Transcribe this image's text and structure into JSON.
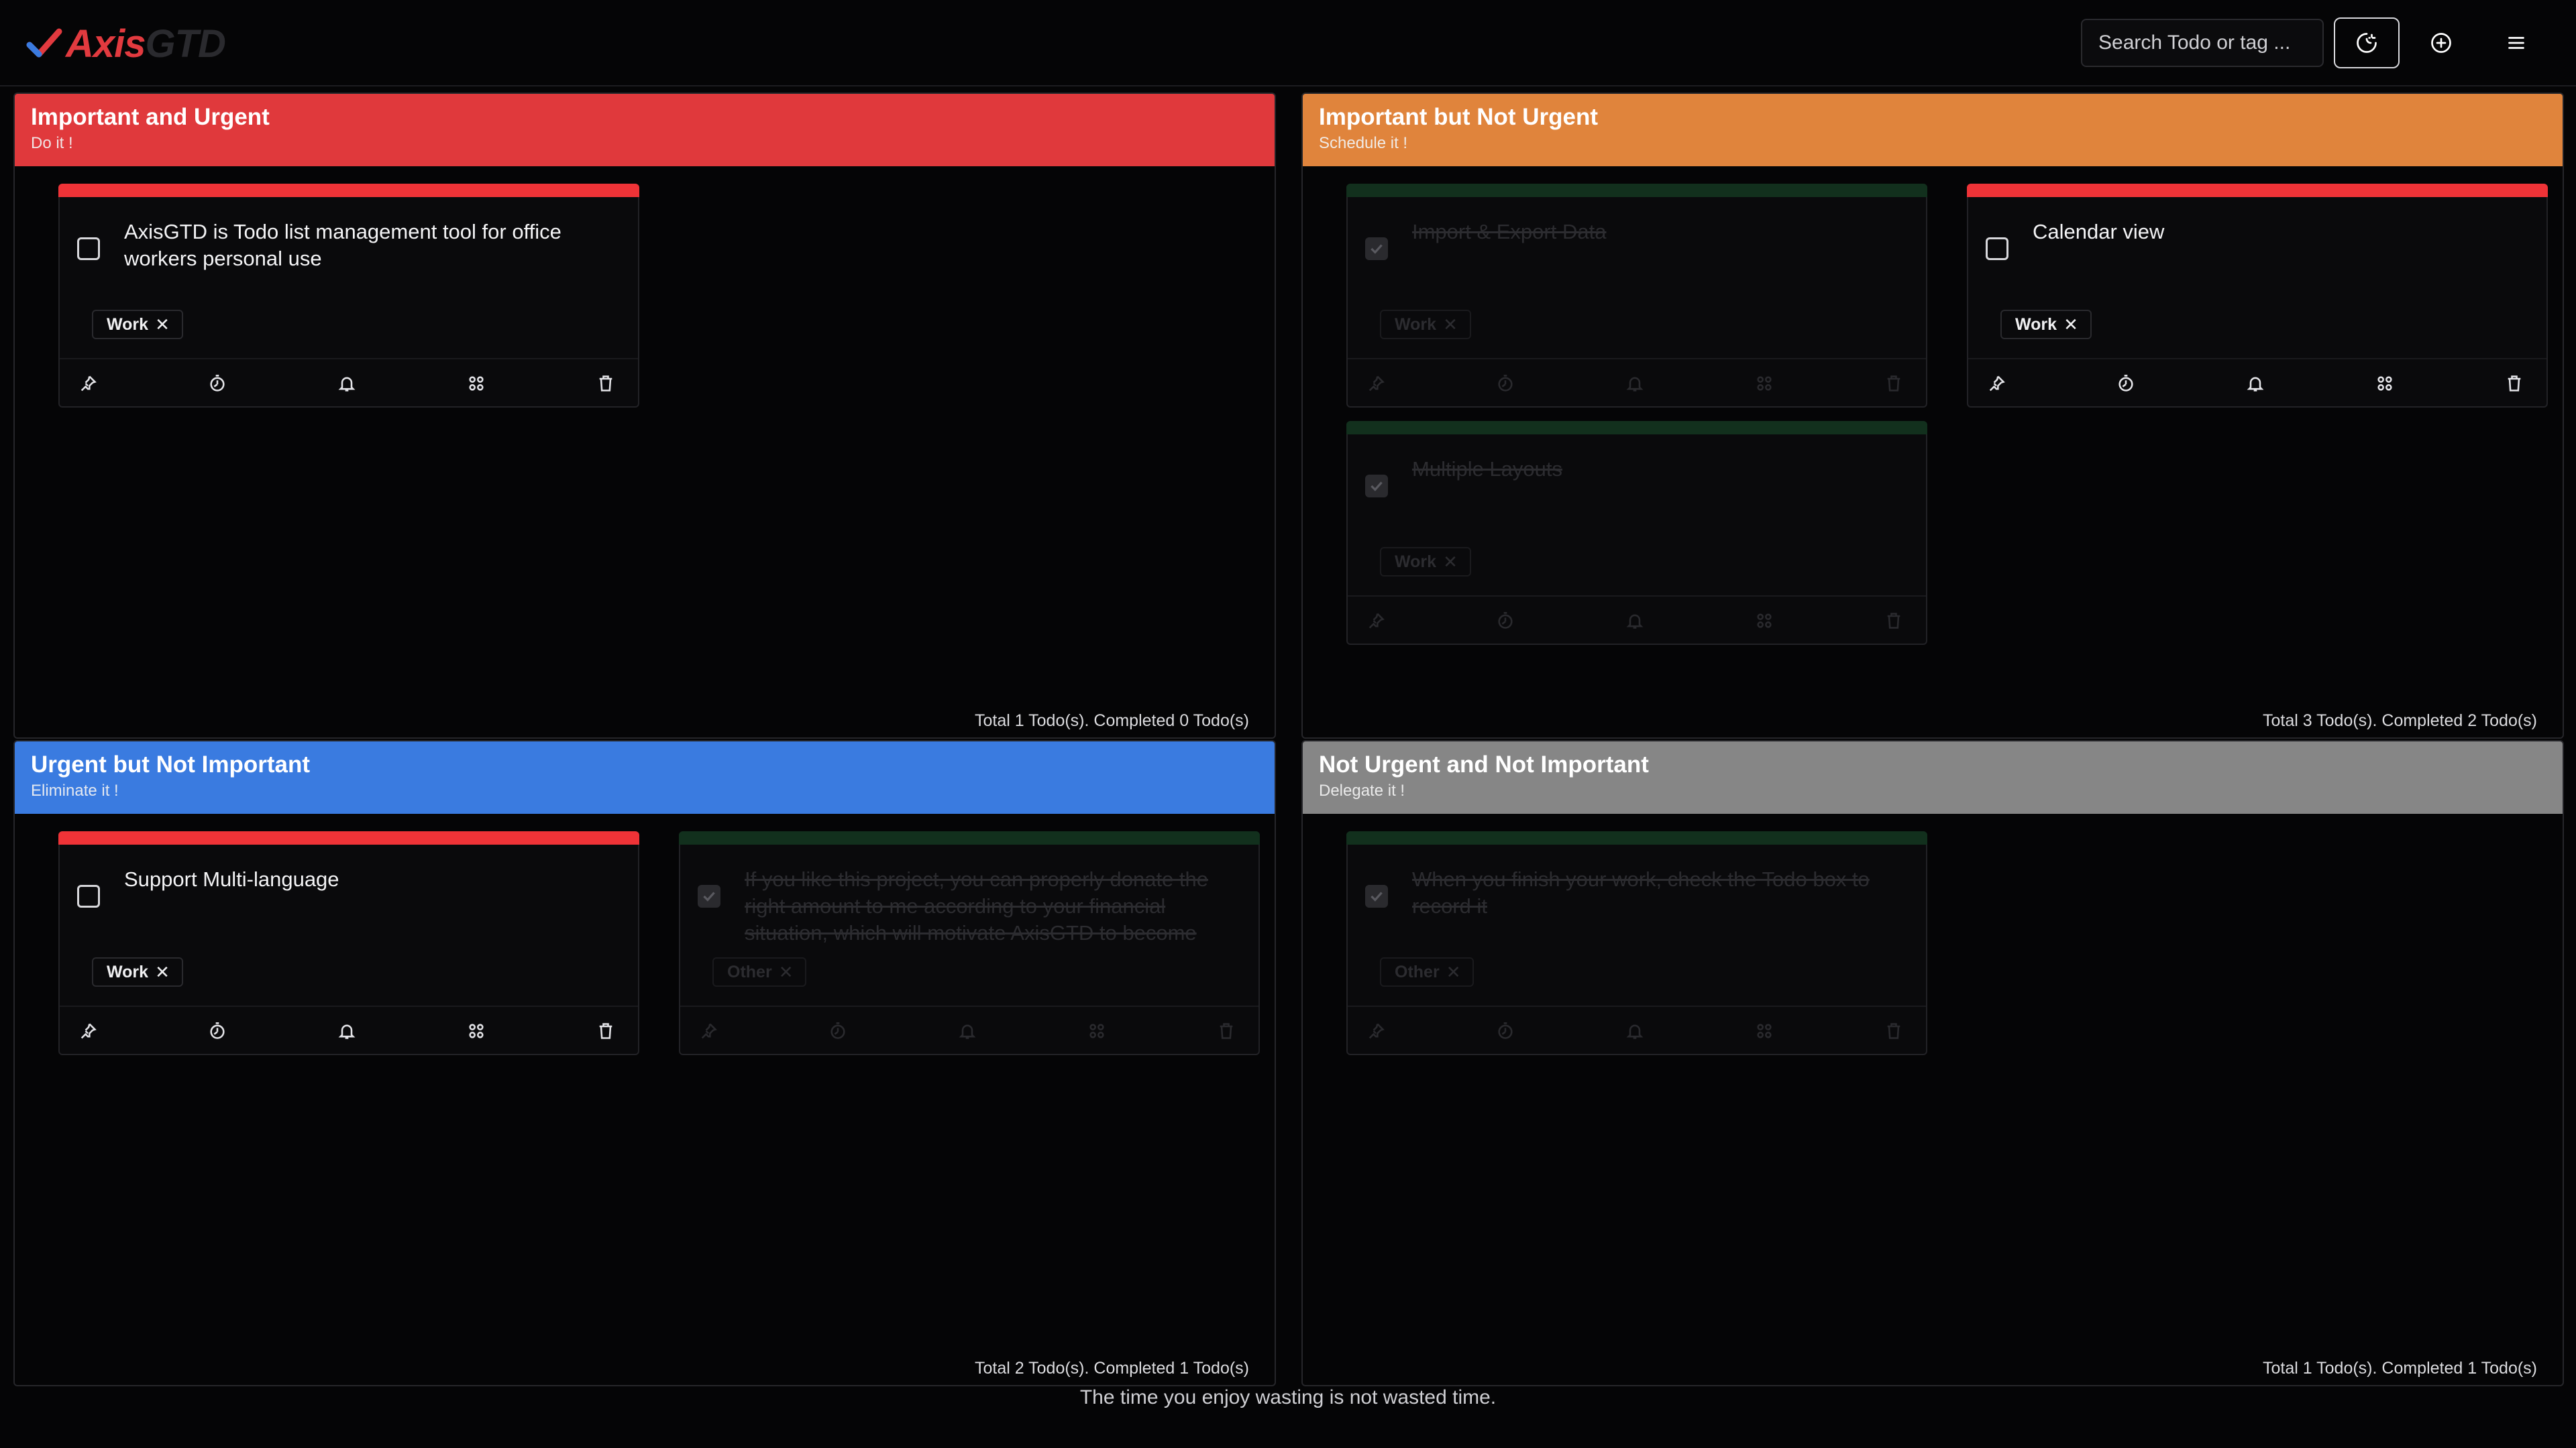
{
  "header": {
    "logo_part1": "Axis",
    "logo_part2": "GTD",
    "search_placeholder": "Search Todo or tag ..."
  },
  "quadrants": [
    {
      "title": "Important and Urgent",
      "subtitle": "Do it !",
      "color": "#e0393c",
      "footer": "Total 1 Todo(s). Completed 0 Todo(s)",
      "cards": [
        {
          "text": "AxisGTD is Todo list management tool for office workers personal use",
          "tag": "Work",
          "completed": false
        }
      ]
    },
    {
      "title": "Important but Not Urgent",
      "subtitle": "Schedule it !",
      "color": "#e0843c",
      "footer": "Total 3 Todo(s). Completed 2 Todo(s)",
      "cards": [
        {
          "text": "Import & Export Data",
          "tag": "Work",
          "completed": true
        },
        {
          "text": "Calendar view",
          "tag": "Work",
          "completed": false
        },
        {
          "text": "Multiple Layouts",
          "tag": "Work",
          "completed": true
        }
      ]
    },
    {
      "title": "Urgent but Not Important",
      "subtitle": "Eliminate it !",
      "color": "#3a7be0",
      "footer": "Total 2 Todo(s). Completed 1 Todo(s)",
      "cards": [
        {
          "text": "Support Multi-language",
          "tag": "Work",
          "completed": false
        },
        {
          "text": "If you like this project, you can properly donate the right amount to me according to your financial situation, which will motivate AxisGTD to become",
          "tag": "Other",
          "completed": true
        }
      ]
    },
    {
      "title": "Not Urgent and Not Important",
      "subtitle": "Delegate it !",
      "color": "#868686",
      "footer": "Total 1 Todo(s). Completed 1 Todo(s)",
      "cards": [
        {
          "text": "When you finish your work, check the Todo box to record it",
          "tag": "Other",
          "completed": true
        }
      ]
    }
  ],
  "footer_quote": "The time you enjoy wasting is not wasted time.",
  "icons": {
    "theme": "moon-icon",
    "add": "plus-circle-icon",
    "menu": "menu-icon",
    "card_actions": [
      "pin-icon",
      "timer-icon",
      "bell-icon",
      "command-icon",
      "trash-icon"
    ]
  }
}
